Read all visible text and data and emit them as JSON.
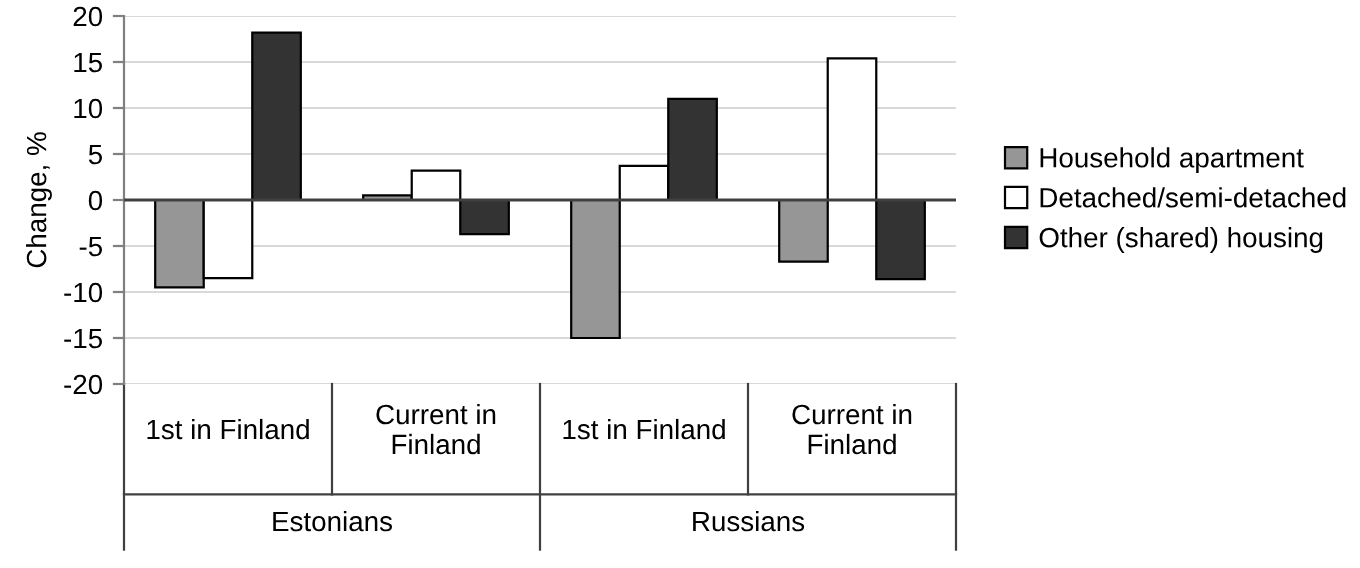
{
  "chart_data": {
    "type": "bar",
    "ylabel": "Change, %",
    "categories": [
      "1st in Finland",
      "Current in\nFinland",
      "1st in Finland",
      "Current in\nFinland"
    ],
    "series": [
      {
        "name": "Household apartment",
        "color": "#969696",
        "values": [
          -9.5,
          0.5,
          -15,
          -6.7
        ]
      },
      {
        "name": "Detached/semi-detached",
        "color": "#ffffff",
        "values": [
          -8.5,
          3.2,
          3.7,
          15.4
        ]
      },
      {
        "name": "Other (shared) housing",
        "color": "#333333",
        "values": [
          18.2,
          -3.7,
          11,
          -8.6
        ]
      }
    ],
    "annotations": [
      "Estonians",
      "Russians"
    ],
    "ylim": [
      -20,
      20
    ],
    "yticks": [
      -20,
      -15,
      -10,
      -5,
      0,
      5,
      10,
      15,
      20
    ],
    "grid": "y",
    "legend": "right"
  }
}
